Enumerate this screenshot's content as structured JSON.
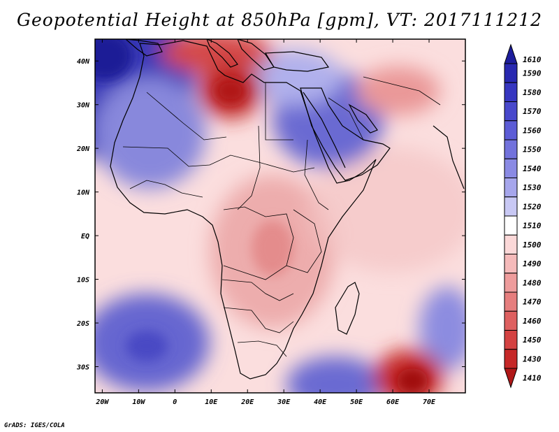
{
  "title": "Geopotential Height at 850hPa [gpm], VT: 2017111212",
  "footer": "GrADS: IGES/COLA",
  "map": {
    "lat_labels": [
      "40N",
      "30N",
      "20N",
      "10N",
      "EQ",
      "10S",
      "20S",
      "30S"
    ],
    "lat_values": [
      40,
      30,
      20,
      10,
      0,
      -10,
      -20,
      -30
    ],
    "lon_labels": [
      "20W",
      "10W",
      "0",
      "10E",
      "20E",
      "30E",
      "40E",
      "50E",
      "60E",
      "70E"
    ],
    "lon_values": [
      -20,
      -10,
      0,
      10,
      20,
      30,
      40,
      50,
      60,
      70
    ],
    "lon_range": [
      -22,
      80
    ],
    "lat_range": [
      -36,
      45
    ],
    "features": [
      {
        "name": "low-north-africa",
        "lon": 7,
        "lat": 32,
        "value": 1450
      },
      {
        "name": "low-mediterranean",
        "lon": 15,
        "lat": 41,
        "value": 1470
      },
      {
        "name": "high-atlantic-north",
        "lon": -20,
        "lat": 41,
        "value": 1600
      },
      {
        "name": "high-middle-east",
        "lon": 45,
        "lat": 27,
        "value": 1550
      },
      {
        "name": "high-south-atlantic",
        "lon": -6,
        "lat": -28,
        "value": 1560
      },
      {
        "name": "high-south-indian",
        "lon": 45,
        "lat": -36,
        "value": 1550
      },
      {
        "name": "low-indian-ocean",
        "lon": 66,
        "lat": -32,
        "value": 1430
      }
    ]
  },
  "colorbar": {
    "labels": [
      "1610",
      "1590",
      "1580",
      "1570",
      "1560",
      "1550",
      "1540",
      "1530",
      "1520",
      "1510",
      "1500",
      "1490",
      "1480",
      "1470",
      "1460",
      "1450",
      "1430",
      "1410"
    ],
    "colors": [
      "#1d1d9c",
      "#2828b0",
      "#3636c0",
      "#4848cc",
      "#5c5cd6",
      "#7272dc",
      "#8a8ae4",
      "#a6a6ec",
      "#c8c8f4",
      "#ffffff",
      "#fbd8d8",
      "#f5baba",
      "#ee9c9c",
      "#e67e7e",
      "#de6060",
      "#d44242",
      "#c62828",
      "#b01818"
    ]
  }
}
